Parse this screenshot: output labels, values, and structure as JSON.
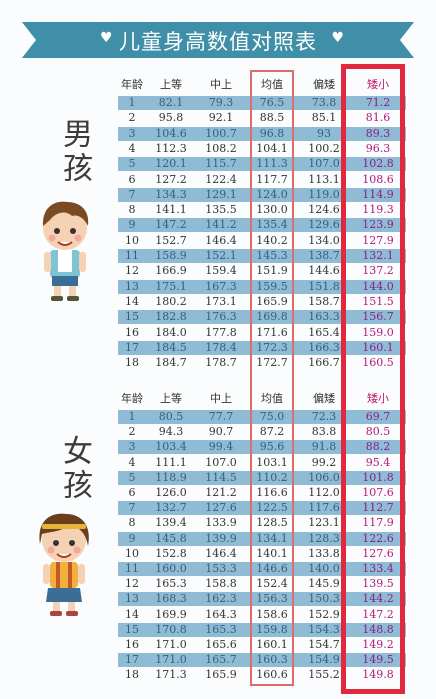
{
  "title": "儿童身高数值对照表",
  "colors": {
    "banner": "#3f8fa8",
    "shaded": "#8fbcd4",
    "highlight": "#e0293e"
  },
  "boys": {
    "label": "男孩",
    "headers": [
      "年龄",
      "上等",
      "中上",
      "均值",
      "偏矮",
      "矮小"
    ],
    "rows": [
      [
        "1",
        "82.1",
        "79.3",
        "76.5",
        "73.8",
        "71.2"
      ],
      [
        "2",
        "95.8",
        "92.1",
        "88.5",
        "85.1",
        "81.6"
      ],
      [
        "3",
        "104.6",
        "100.7",
        "96.8",
        "93",
        "89.3"
      ],
      [
        "4",
        "112.3",
        "108.2",
        "104.1",
        "100.2",
        "96.3"
      ],
      [
        "5",
        "120.1",
        "115.7",
        "111.3",
        "107.0",
        "102.8"
      ],
      [
        "6",
        "127.2",
        "122.4",
        "117.7",
        "113.1",
        "108.6"
      ],
      [
        "7",
        "134.3",
        "129.1",
        "124.0",
        "119.0",
        "114.9"
      ],
      [
        "8",
        "141.1",
        "135.5",
        "130.0",
        "124.6",
        "119.3"
      ],
      [
        "9",
        "147.2",
        "141.2",
        "135.4",
        "129.6",
        "123.9"
      ],
      [
        "10",
        "152.7",
        "146.4",
        "140.2",
        "134.0",
        "127.9"
      ],
      [
        "11",
        "158.9",
        "152.1",
        "145.3",
        "138.7",
        "132.1"
      ],
      [
        "12",
        "166.9",
        "159.4",
        "151.9",
        "144.6",
        "137.2"
      ],
      [
        "13",
        "175.1",
        "167.3",
        "159.5",
        "151.8",
        "144.0"
      ],
      [
        "14",
        "180.2",
        "173.1",
        "165.9",
        "158.7",
        "151.5"
      ],
      [
        "15",
        "182.8",
        "176.3",
        "169.8",
        "163.3",
        "156.7"
      ],
      [
        "16",
        "184.0",
        "177.8",
        "171.6",
        "165.4",
        "159.0"
      ],
      [
        "17",
        "184.5",
        "178.4",
        "172.3",
        "166.3",
        "160.1"
      ],
      [
        "18",
        "184.7",
        "178.7",
        "172.7",
        "166.7",
        "160.5"
      ]
    ]
  },
  "girls": {
    "label": "女孩",
    "headers": [
      "年龄",
      "上等",
      "中上",
      "均值",
      "偏矮",
      "矮小"
    ],
    "rows": [
      [
        "1",
        "80.5",
        "77.7",
        "75.0",
        "72.3",
        "69.7"
      ],
      [
        "2",
        "94.3",
        "90.7",
        "87.2",
        "83.8",
        "80.5"
      ],
      [
        "3",
        "103.4",
        "99.4",
        "95.6",
        "91.8",
        "88.2"
      ],
      [
        "4",
        "111.1",
        "107.0",
        "103.1",
        "99.2",
        "95.4"
      ],
      [
        "5",
        "118.9",
        "114.5",
        "110.2",
        "106.0",
        "101.8"
      ],
      [
        "6",
        "126.0",
        "121.2",
        "116.6",
        "112.0",
        "107.6"
      ],
      [
        "7",
        "132.7",
        "127.6",
        "122.5",
        "117.6",
        "112.7"
      ],
      [
        "8",
        "139.4",
        "133.9",
        "128.5",
        "123.1",
        "117.9"
      ],
      [
        "9",
        "145.8",
        "139.9",
        "134.1",
        "128.3",
        "122.6"
      ],
      [
        "10",
        "152.8",
        "146.4",
        "140.1",
        "133.8",
        "127.6"
      ],
      [
        "11",
        "160.0",
        "153.3",
        "146.6",
        "140.0",
        "133.4"
      ],
      [
        "12",
        "165.3",
        "158.8",
        "152.4",
        "145.9",
        "139.5"
      ],
      [
        "13",
        "168.3",
        "162.3",
        "156.3",
        "150.3",
        "144.2"
      ],
      [
        "14",
        "169.9",
        "164.3",
        "158.6",
        "152.9",
        "147.2"
      ],
      [
        "15",
        "170.8",
        "165.3",
        "159.8",
        "154.3",
        "148.8"
      ],
      [
        "16",
        "171.0",
        "165.6",
        "160.1",
        "154.7",
        "149.2"
      ],
      [
        "17",
        "171.0",
        "165.7",
        "160.3",
        "154.9",
        "149.5"
      ],
      [
        "18",
        "171.3",
        "165.9",
        "160.6",
        "155.2",
        "149.8"
      ]
    ]
  }
}
